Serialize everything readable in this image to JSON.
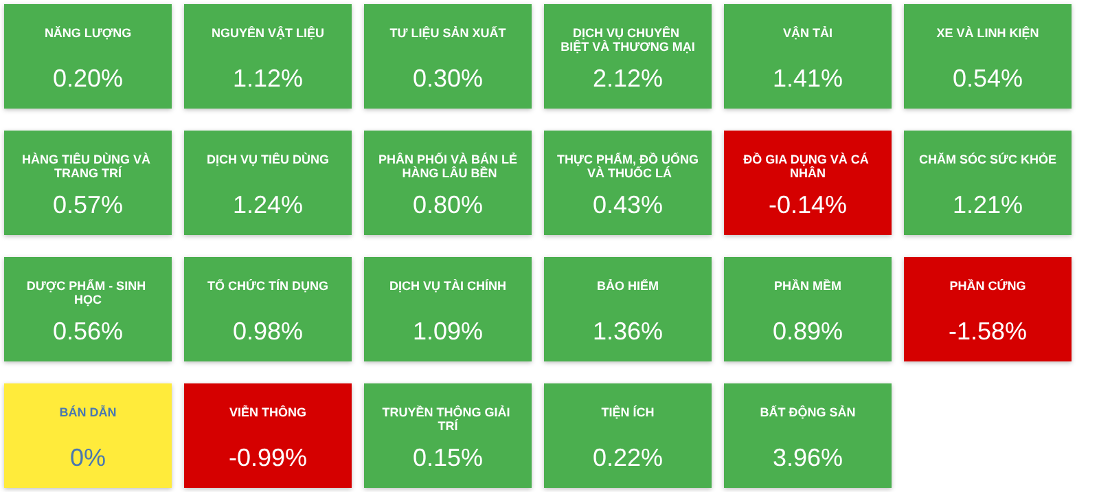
{
  "chart_data": {
    "type": "other",
    "categories": [
      "NĂNG LƯỢNG",
      "NGUYÊN VẬT LIỆU",
      "TƯ LIỆU SẢN XUẤT",
      "DỊCH VỤ CHUYÊN BIỆT VÀ THƯƠNG MẠI",
      "VẬN TẢI",
      "XE VÀ LINH KIỆN",
      "HÀNG TIÊU DÙNG VÀ TRANG TRÍ",
      "DỊCH VỤ TIÊU DÙNG",
      "PHÂN PHỐI VÀ BÁN LẺ HÀNG LÂU BỀN",
      "THỰC PHẨM, ĐỒ UỐNG VÀ THUỐC LÁ",
      "ĐỒ GIA DỤNG VÀ CÁ NHÂN",
      "CHĂM SÓC SỨC KHỎE",
      "DƯỢC PHẨM - SINH HỌC",
      "TỔ CHỨC TÍN DỤNG",
      "DỊCH VỤ TÀI CHÍNH",
      "BẢO HIỂM",
      "PHẦN MỀM",
      "PHẦN CỨNG",
      "BÁN DẪN",
      "VIỄN THÔNG",
      "TRUYỀN THÔNG GIẢI TRÍ",
      "TIỆN ÍCH",
      "BẤT ĐỘNG SẢN"
    ],
    "values": [
      0.2,
      1.12,
      0.3,
      2.12,
      1.41,
      0.54,
      0.57,
      1.24,
      0.8,
      0.43,
      -0.14,
      1.21,
      0.56,
      0.98,
      1.09,
      1.36,
      0.89,
      -1.58,
      0,
      -0.99,
      0.15,
      0.22,
      3.96
    ],
    "value_labels": [
      "0.20%",
      "1.12%",
      "0.30%",
      "2.12%",
      "1.41%",
      "0.54%",
      "0.57%",
      "1.24%",
      "0.80%",
      "0.43%",
      "-0.14%",
      "1.21%",
      "0.56%",
      "0.98%",
      "1.09%",
      "1.36%",
      "0.89%",
      "-1.58%",
      "0%",
      "-0.99%",
      "0.15%",
      "0.22%",
      "3.96%"
    ],
    "colors": [
      "#4caf50",
      "#4caf50",
      "#4caf50",
      "#4caf50",
      "#4caf50",
      "#4caf50",
      "#4caf50",
      "#4caf50",
      "#4caf50",
      "#4caf50",
      "#d50000",
      "#4caf50",
      "#4caf50",
      "#4caf50",
      "#4caf50",
      "#4caf50",
      "#4caf50",
      "#d50000",
      "#ffeb3b",
      "#d50000",
      "#4caf50",
      "#4caf50",
      "#4caf50"
    ]
  }
}
